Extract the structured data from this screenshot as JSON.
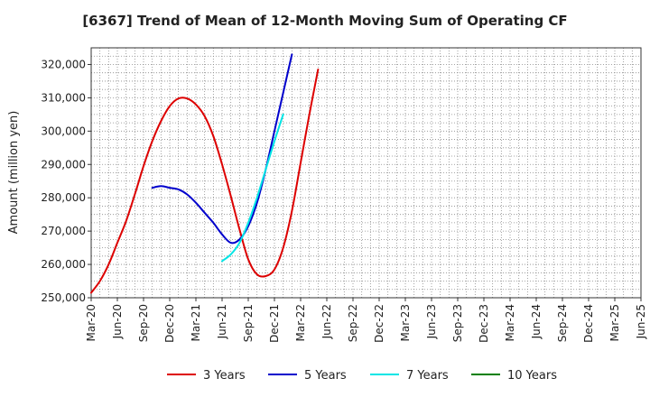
{
  "chart_data": {
    "type": "line",
    "title": "[6367]  Trend of Mean of 12-Month Moving Sum of Operating CF",
    "xlabel": "",
    "ylabel": "Amount (million yen)",
    "ylim": [
      250000,
      325000
    ],
    "yticks": [
      250000,
      260000,
      270000,
      280000,
      290000,
      300000,
      310000,
      320000
    ],
    "ytick_labels": [
      "250,000",
      "260,000",
      "270,000",
      "280,000",
      "290,000",
      "300,000",
      "310,000",
      "320,000"
    ],
    "xticks": [
      "Mar-20",
      "Jun-20",
      "Sep-20",
      "Dec-20",
      "Mar-21",
      "Jun-21",
      "Sep-21",
      "Dec-21",
      "Mar-22",
      "Jun-22",
      "Sep-22",
      "Dec-22",
      "Mar-23",
      "Jun-23",
      "Sep-23",
      "Dec-23",
      "Mar-24",
      "Jun-24",
      "Sep-24",
      "Dec-24",
      "Mar-25",
      "Jun-25"
    ],
    "grid": true,
    "legend_position": "bottom",
    "series": [
      {
        "name": "3 Years",
        "color": "#dd0000",
        "points": [
          [
            0,
            251500
          ],
          [
            1,
            255000
          ],
          [
            2,
            260000
          ],
          [
            3,
            266500
          ],
          [
            4,
            273000
          ],
          [
            5,
            281000
          ],
          [
            6,
            289500
          ],
          [
            7,
            297000
          ],
          [
            8,
            303000
          ],
          [
            9,
            307500
          ],
          [
            10,
            309800
          ],
          [
            11,
            309800
          ],
          [
            12,
            308000
          ],
          [
            13,
            304500
          ],
          [
            14,
            298500
          ],
          [
            15,
            290000
          ],
          [
            16,
            280500
          ],
          [
            17,
            270500
          ],
          [
            18,
            261500
          ],
          [
            19,
            257000
          ],
          [
            20,
            256500
          ],
          [
            21,
            258500
          ],
          [
            22,
            265000
          ],
          [
            23,
            276000
          ],
          [
            24,
            290500
          ],
          [
            25,
            305000
          ],
          [
            26,
            318500
          ]
        ]
      },
      {
        "name": "5 Years",
        "color": "#0000cc",
        "points": [
          [
            7,
            283000
          ],
          [
            8,
            283500
          ],
          [
            9,
            283000
          ],
          [
            10,
            282500
          ],
          [
            11,
            281000
          ],
          [
            12,
            278500
          ],
          [
            13,
            275500
          ],
          [
            14,
            272500
          ],
          [
            15,
            269000
          ],
          [
            16,
            266500
          ],
          [
            17,
            267500
          ],
          [
            18,
            271500
          ],
          [
            19,
            278500
          ],
          [
            20,
            288500
          ],
          [
            21,
            300000
          ],
          [
            22,
            311500
          ],
          [
            23,
            323000
          ]
        ]
      },
      {
        "name": "7 Years",
        "color": "#00e5e5",
        "points": [
          [
            15,
            261000
          ],
          [
            16,
            263000
          ],
          [
            17,
            266500
          ],
          [
            18,
            272500
          ],
          [
            19,
            280000
          ],
          [
            20,
            288500
          ],
          [
            21,
            297000
          ],
          [
            22,
            305000
          ]
        ]
      },
      {
        "name": "10 Years",
        "color": "#008000",
        "points": []
      }
    ]
  }
}
